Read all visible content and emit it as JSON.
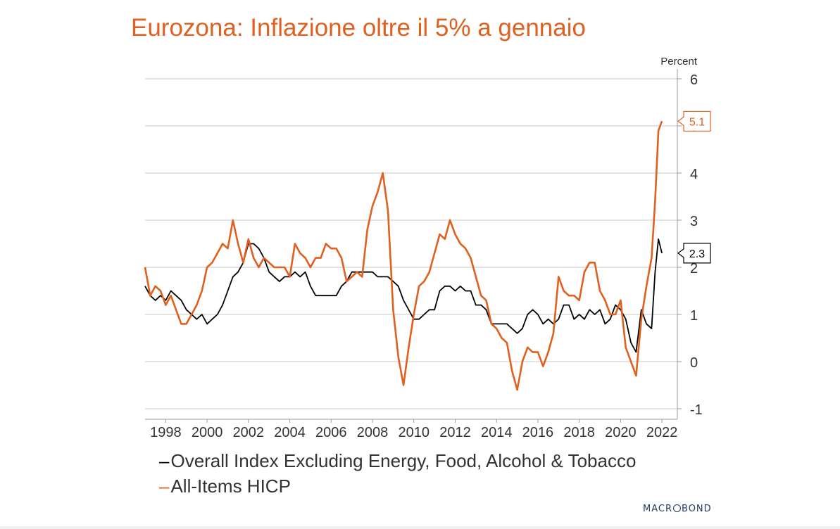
{
  "chart_data": {
    "type": "line",
    "title": "Eurozona: Inflazione oltre il 5% a gennaio",
    "ylabel": "Percent",
    "ylim": [
      -1,
      6
    ],
    "xlim": [
      1997.0,
      2022.2
    ],
    "yticks": [
      "6",
      "5",
      "4",
      "3",
      "2",
      "1",
      "0",
      "-1"
    ],
    "yticks_values": [
      6,
      5,
      4,
      3,
      2,
      1,
      0,
      -1
    ],
    "xticks": [
      "1998",
      "2000",
      "2002",
      "2004",
      "2006",
      "2008",
      "2010",
      "2012",
      "2014",
      "2016",
      "2018",
      "2020",
      "2022"
    ],
    "xticks_values": [
      1998,
      2000,
      2002,
      2004,
      2006,
      2008,
      2010,
      2012,
      2014,
      2016,
      2018,
      2020,
      2022
    ],
    "grid": "horizontal",
    "axis_side": "right",
    "legend_position": "bottom",
    "series": [
      {
        "name": "Overall Index Excluding Energy, Food, Alcohol & Tobacco",
        "color": "#000000",
        "end_label": "2.3",
        "x": [
          1997.0,
          1997.25,
          1997.5,
          1997.75,
          1998.0,
          1998.25,
          1998.5,
          1998.75,
          1999.0,
          1999.25,
          1999.5,
          1999.75,
          2000.0,
          2000.25,
          2000.5,
          2000.75,
          2001.0,
          2001.25,
          2001.5,
          2001.75,
          2002.0,
          2002.25,
          2002.5,
          2002.75,
          2003.0,
          2003.25,
          2003.5,
          2003.75,
          2004.0,
          2004.25,
          2004.5,
          2004.75,
          2005.0,
          2005.25,
          2005.5,
          2005.75,
          2006.0,
          2006.25,
          2006.5,
          2006.75,
          2007.0,
          2007.25,
          2007.5,
          2007.75,
          2008.0,
          2008.25,
          2008.5,
          2008.75,
          2009.0,
          2009.25,
          2009.5,
          2009.75,
          2010.0,
          2010.25,
          2010.5,
          2010.75,
          2011.0,
          2011.25,
          2011.5,
          2011.75,
          2012.0,
          2012.25,
          2012.5,
          2012.75,
          2013.0,
          2013.25,
          2013.5,
          2013.75,
          2014.0,
          2014.25,
          2014.5,
          2014.75,
          2015.0,
          2015.25,
          2015.5,
          2015.75,
          2016.0,
          2016.25,
          2016.5,
          2016.75,
          2017.0,
          2017.25,
          2017.5,
          2017.75,
          2018.0,
          2018.25,
          2018.5,
          2018.75,
          2019.0,
          2019.25,
          2019.5,
          2019.75,
          2020.0,
          2020.25,
          2020.5,
          2020.75,
          2021.0,
          2021.25,
          2021.5,
          2021.67,
          2021.83,
          2022.0
        ],
        "values": [
          1.6,
          1.4,
          1.3,
          1.4,
          1.3,
          1.5,
          1.4,
          1.3,
          1.1,
          1.0,
          0.9,
          1.0,
          0.8,
          0.9,
          1.0,
          1.2,
          1.5,
          1.8,
          1.9,
          2.1,
          2.5,
          2.5,
          2.4,
          2.2,
          1.9,
          1.8,
          1.7,
          1.8,
          1.8,
          1.9,
          1.8,
          1.9,
          1.6,
          1.4,
          1.4,
          1.4,
          1.4,
          1.4,
          1.6,
          1.7,
          1.9,
          1.9,
          1.9,
          1.9,
          1.9,
          1.8,
          1.8,
          1.8,
          1.7,
          1.6,
          1.3,
          1.1,
          0.9,
          0.9,
          1.0,
          1.1,
          1.1,
          1.5,
          1.6,
          1.6,
          1.5,
          1.6,
          1.5,
          1.5,
          1.2,
          1.2,
          1.1,
          0.8,
          0.8,
          0.8,
          0.8,
          0.7,
          0.6,
          0.7,
          1.0,
          1.1,
          1.0,
          0.8,
          0.9,
          0.8,
          0.9,
          1.2,
          1.2,
          0.9,
          1.0,
          0.9,
          1.1,
          1.0,
          1.1,
          0.8,
          0.9,
          1.2,
          1.1,
          0.9,
          0.4,
          0.2,
          1.1,
          0.8,
          0.7,
          1.9,
          2.6,
          2.3
        ]
      },
      {
        "name": "All-Items HICP",
        "color": "#e0601f",
        "end_label": "5.1",
        "x": [
          1997.0,
          1997.25,
          1997.5,
          1997.75,
          1998.0,
          1998.25,
          1998.5,
          1998.75,
          1999.0,
          1999.25,
          1999.5,
          1999.75,
          2000.0,
          2000.25,
          2000.5,
          2000.75,
          2001.0,
          2001.25,
          2001.5,
          2001.75,
          2002.0,
          2002.25,
          2002.5,
          2002.75,
          2003.0,
          2003.25,
          2003.5,
          2003.75,
          2004.0,
          2004.25,
          2004.5,
          2004.75,
          2005.0,
          2005.25,
          2005.5,
          2005.75,
          2006.0,
          2006.25,
          2006.5,
          2006.75,
          2007.0,
          2007.25,
          2007.5,
          2007.75,
          2008.0,
          2008.25,
          2008.5,
          2008.75,
          2009.0,
          2009.25,
          2009.5,
          2009.75,
          2010.0,
          2010.25,
          2010.5,
          2010.75,
          2011.0,
          2011.25,
          2011.5,
          2011.75,
          2012.0,
          2012.25,
          2012.5,
          2012.75,
          2013.0,
          2013.25,
          2013.5,
          2013.75,
          2014.0,
          2014.25,
          2014.5,
          2014.75,
          2015.0,
          2015.25,
          2015.5,
          2015.75,
          2016.0,
          2016.25,
          2016.5,
          2016.75,
          2017.0,
          2017.25,
          2017.5,
          2017.75,
          2018.0,
          2018.25,
          2018.5,
          2018.75,
          2019.0,
          2019.25,
          2019.5,
          2019.75,
          2020.0,
          2020.25,
          2020.5,
          2020.75,
          2021.0,
          2021.25,
          2021.5,
          2021.67,
          2021.83,
          2022.0
        ],
        "values": [
          2.0,
          1.4,
          1.6,
          1.5,
          1.2,
          1.4,
          1.1,
          0.8,
          0.8,
          1.0,
          1.2,
          1.5,
          2.0,
          2.1,
          2.3,
          2.5,
          2.4,
          3.0,
          2.5,
          2.1,
          2.6,
          2.2,
          2.0,
          2.2,
          2.1,
          2.0,
          2.0,
          2.0,
          1.8,
          2.5,
          2.3,
          2.2,
          2.0,
          2.2,
          2.2,
          2.5,
          2.4,
          2.4,
          2.2,
          1.7,
          1.8,
          1.9,
          1.8,
          2.8,
          3.3,
          3.6,
          4.0,
          3.2,
          1.1,
          0.1,
          -0.5,
          0.3,
          1.0,
          1.6,
          1.7,
          1.9,
          2.3,
          2.7,
          2.6,
          3.0,
          2.7,
          2.5,
          2.4,
          2.2,
          1.8,
          1.4,
          1.3,
          0.8,
          0.7,
          0.5,
          0.4,
          -0.2,
          -0.6,
          0.0,
          0.3,
          0.2,
          0.2,
          -0.1,
          0.2,
          0.6,
          1.8,
          1.5,
          1.4,
          1.4,
          1.3,
          1.9,
          2.1,
          2.1,
          1.5,
          1.3,
          1.0,
          1.0,
          1.3,
          0.3,
          0.0,
          -0.3,
          0.9,
          1.6,
          2.2,
          3.4,
          4.9,
          5.1
        ]
      }
    ]
  },
  "brand": {
    "pre": "MACR",
    "post": "BOND"
  }
}
